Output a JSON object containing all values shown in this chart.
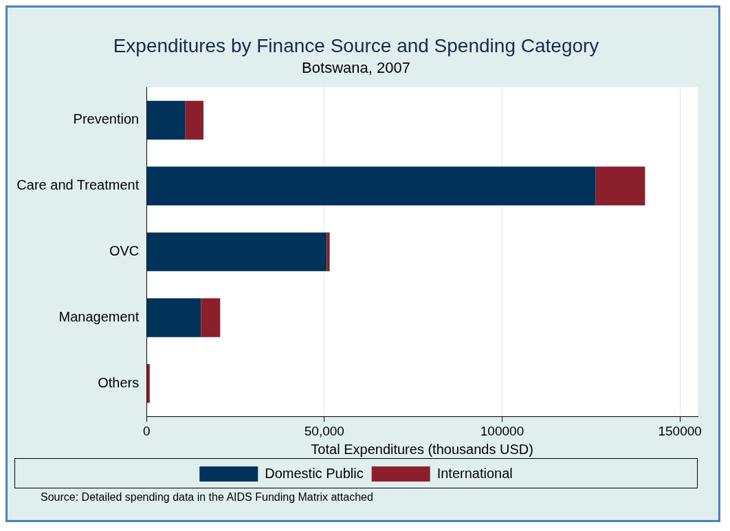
{
  "chart_data": {
    "type": "bar",
    "orientation": "horizontal",
    "stacked": true,
    "title": "Expenditures by Finance Source and Spending Category",
    "subtitle": "Botswana, 2007",
    "xlabel": "Total Expenditures (thousands USD)",
    "categories": [
      "Prevention",
      "Care and Treatment",
      "OVC",
      "Management",
      "Others"
    ],
    "series": [
      {
        "name": "Domestic Public",
        "color": "#01325a",
        "values": [
          10900,
          126300,
          50700,
          15300,
          0
        ]
      },
      {
        "name": "International",
        "color": "#8b1f2c",
        "values": [
          5100,
          13900,
          800,
          5400,
          900
        ]
      }
    ],
    "xlim": [
      0,
      155000
    ],
    "xticks": [
      0,
      {
        "value": 50000,
        "label": "50,000"
      },
      {
        "value": 100000,
        "label": "100000"
      },
      {
        "value": 150000,
        "label": "150000"
      }
    ],
    "grid": "x",
    "legend": "bottom",
    "annotations": [
      "Source: Detailed spending data in the AIDS Funding Matrix attached"
    ]
  }
}
